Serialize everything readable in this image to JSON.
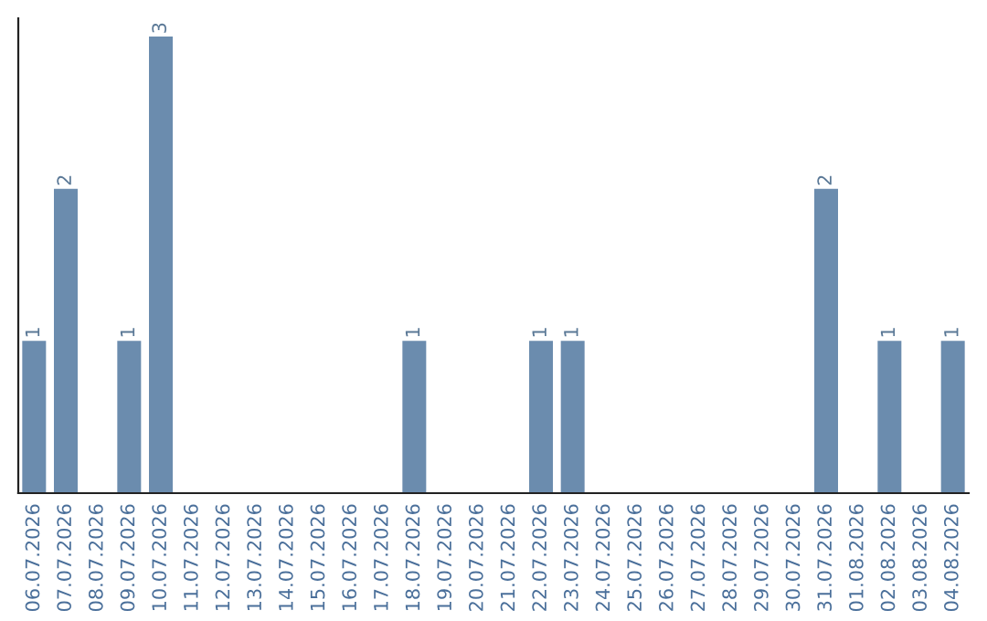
{
  "chart_data": {
    "type": "bar",
    "categories": [
      "06.07.2026",
      "07.07.2026",
      "08.07.2026",
      "09.07.2026",
      "10.07.2026",
      "11.07.2026",
      "12.07.2026",
      "13.07.2026",
      "14.07.2026",
      "15.07.2026",
      "16.07.2026",
      "17.07.2026",
      "18.07.2026",
      "19.07.2026",
      "20.07.2026",
      "21.07.2026",
      "22.07.2026",
      "23.07.2026",
      "24.07.2026",
      "25.07.2026",
      "26.07.2026",
      "27.07.2026",
      "28.07.2026",
      "29.07.2026",
      "30.07.2026",
      "31.07.2026",
      "01.08.2026",
      "02.08.2026",
      "03.08.2026",
      "04.08.2026"
    ],
    "values": [
      1,
      2,
      0,
      1,
      3,
      0,
      0,
      0,
      0,
      0,
      0,
      0,
      1,
      0,
      0,
      0,
      1,
      1,
      0,
      0,
      0,
      0,
      0,
      0,
      0,
      2,
      0,
      1,
      0,
      1
    ],
    "value_labels": [
      "1",
      "2",
      null,
      "1",
      "3",
      null,
      null,
      null,
      null,
      null,
      null,
      null,
      "1",
      null,
      null,
      null,
      "1",
      "1",
      null,
      null,
      null,
      null,
      null,
      null,
      null,
      "2",
      null,
      "1",
      null,
      "1"
    ],
    "color": "#6b8cae",
    "tick_labels": "x",
    "grid": false,
    "legend": false
  }
}
